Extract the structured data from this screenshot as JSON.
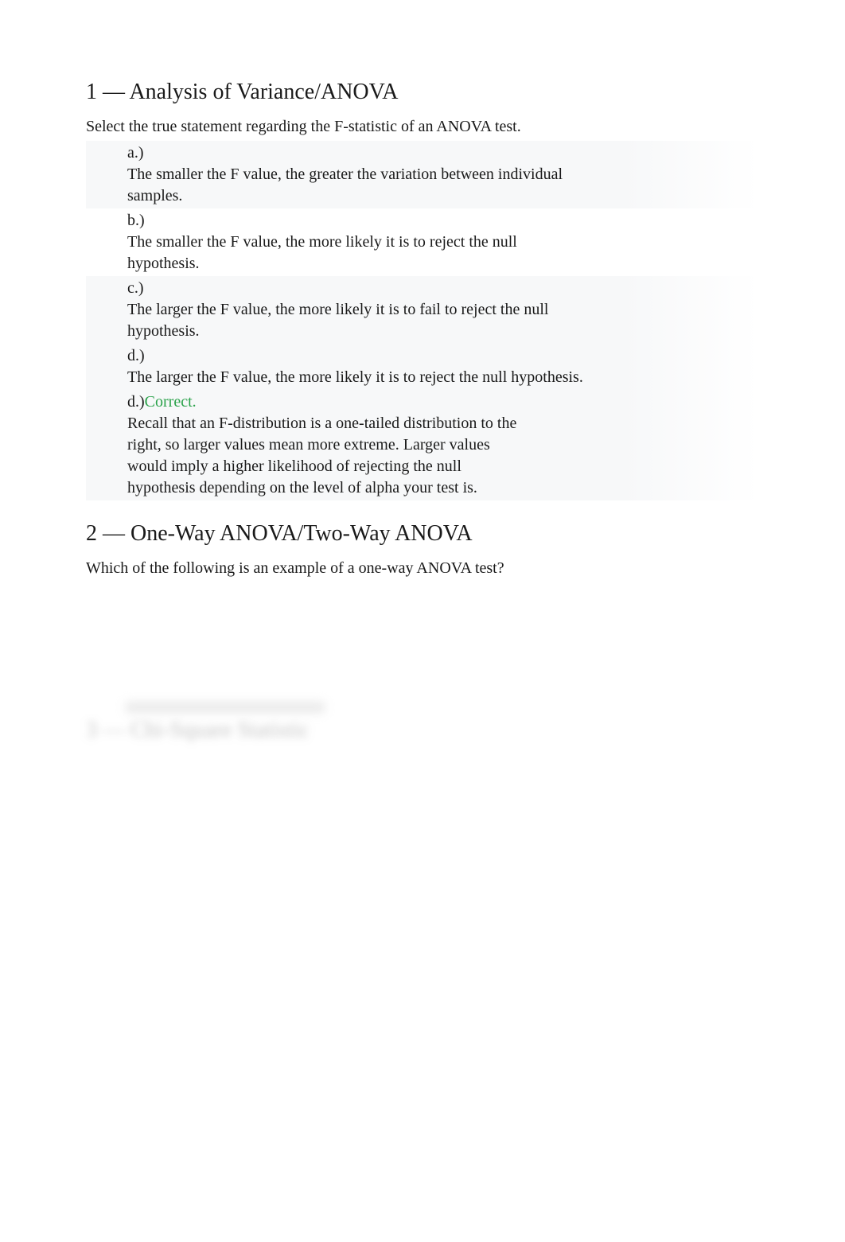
{
  "bullet_glyph": "",
  "colors": {
    "text": "#1a1a1a",
    "correct": "#2aa24a",
    "option_bg": "#f7f8f9",
    "blur_text": "#b9b9b9",
    "page_bg": "#ffffff"
  },
  "q1": {
    "heading": "1 — Analysis of Variance/ANOVA",
    "prompt": "Select the true statement regarding the F-statistic of an ANOVA test.",
    "options": [
      {
        "label": "a.)",
        "text": "The smaller the F value, the greater the variation between individual samples."
      },
      {
        "label": "b.)",
        "text": "The smaller the F value, the more likely it is to reject the null hypothesis."
      },
      {
        "label": "c.)",
        "text": "The larger the F value, the more likely it is to fail to reject the null hypothesis."
      },
      {
        "label": "d.)",
        "text": "The larger the F value, the more likely it is to reject the null hypothesis."
      }
    ],
    "answer": {
      "prefix": "d.)",
      "correct_word": "Correct.",
      "explanation": "Recall that an F-distribution is a one-tailed distribution to the right, so larger values mean more extreme. Larger values would imply a higher likelihood of rejecting the null hypothesis depending on the level of alpha your test is."
    }
  },
  "q2": {
    "heading": "2 — One-Way ANOVA/Two-Way ANOVA",
    "prompt": "Which of the following is an example of a one-way ANOVA test?"
  },
  "blurred": {
    "heading": "3 — Chi-Square Statistic"
  }
}
